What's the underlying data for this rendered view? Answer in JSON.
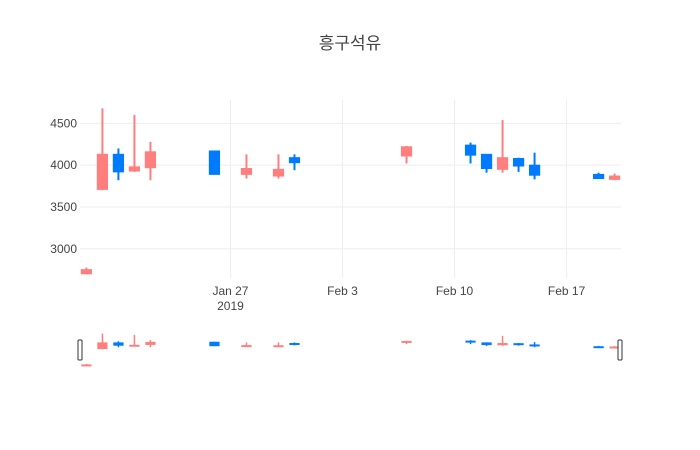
{
  "chart_data": {
    "type": "candlestick",
    "title": "흥구석유",
    "xlabel": "",
    "ylabel": "",
    "grid": true,
    "legend": "none",
    "x_range": [
      "2019-01-18",
      "2019-02-20"
    ],
    "y_range": [
      2650,
      4780
    ],
    "y_ticks": [
      3000,
      3500,
      4000,
      4500
    ],
    "x_ticks": [
      {
        "date": "2019-01-27",
        "label": "Jan 27",
        "sublabel": "2019"
      },
      {
        "date": "2019-02-03",
        "label": "Feb 3",
        "sublabel": ""
      },
      {
        "date": "2019-02-10",
        "label": "Feb 10",
        "sublabel": ""
      },
      {
        "date": "2019-02-17",
        "label": "Feb 17",
        "sublabel": ""
      }
    ],
    "colors": {
      "increasing": "#3D9970",
      "decreasing": "#FF4136",
      "up": "#007BFF",
      "down": "#FF7F7F"
    },
    "candles": [
      {
        "date": "2019-01-18",
        "open": 2750,
        "high": 2775,
        "low": 2700,
        "close": 2700
      },
      {
        "date": "2019-01-19",
        "open": 4130,
        "high": 4680,
        "low": 3700,
        "close": 3710
      },
      {
        "date": "2019-01-20",
        "open": 3920,
        "high": 4200,
        "low": 3820,
        "close": 4130
      },
      {
        "date": "2019-01-21",
        "open": 3980,
        "high": 4600,
        "low": 3920,
        "close": 3930
      },
      {
        "date": "2019-01-22",
        "open": 4160,
        "high": 4280,
        "low": 3820,
        "close": 3970
      },
      {
        "date": "2019-01-26",
        "open": 3890,
        "high": 4170,
        "low": 3890,
        "close": 4170
      },
      {
        "date": "2019-01-28",
        "open": 3960,
        "high": 4130,
        "low": 3840,
        "close": 3890
      },
      {
        "date": "2019-01-30",
        "open": 3950,
        "high": 4130,
        "low": 3840,
        "close": 3870
      },
      {
        "date": "2019-01-31",
        "open": 4030,
        "high": 4130,
        "low": 3940,
        "close": 4090
      },
      {
        "date": "2019-02-07",
        "open": 4220,
        "high": 4230,
        "low": 4020,
        "close": 4110
      },
      {
        "date": "2019-02-11",
        "open": 4120,
        "high": 4270,
        "low": 4020,
        "close": 4240
      },
      {
        "date": "2019-02-12",
        "open": 3960,
        "high": 4130,
        "low": 3910,
        "close": 4130
      },
      {
        "date": "2019-02-13",
        "open": 4090,
        "high": 4540,
        "low": 3910,
        "close": 3950
      },
      {
        "date": "2019-02-14",
        "open": 3990,
        "high": 4090,
        "low": 3920,
        "close": 4080
      },
      {
        "date": "2019-02-15",
        "open": 3880,
        "high": 4150,
        "low": 3830,
        "close": 4000
      },
      {
        "date": "2019-02-19",
        "open": 3840,
        "high": 3910,
        "low": 3840,
        "close": 3890
      },
      {
        "date": "2019-02-20",
        "open": 3870,
        "high": 3900,
        "low": 3820,
        "close": 3830
      }
    ]
  }
}
